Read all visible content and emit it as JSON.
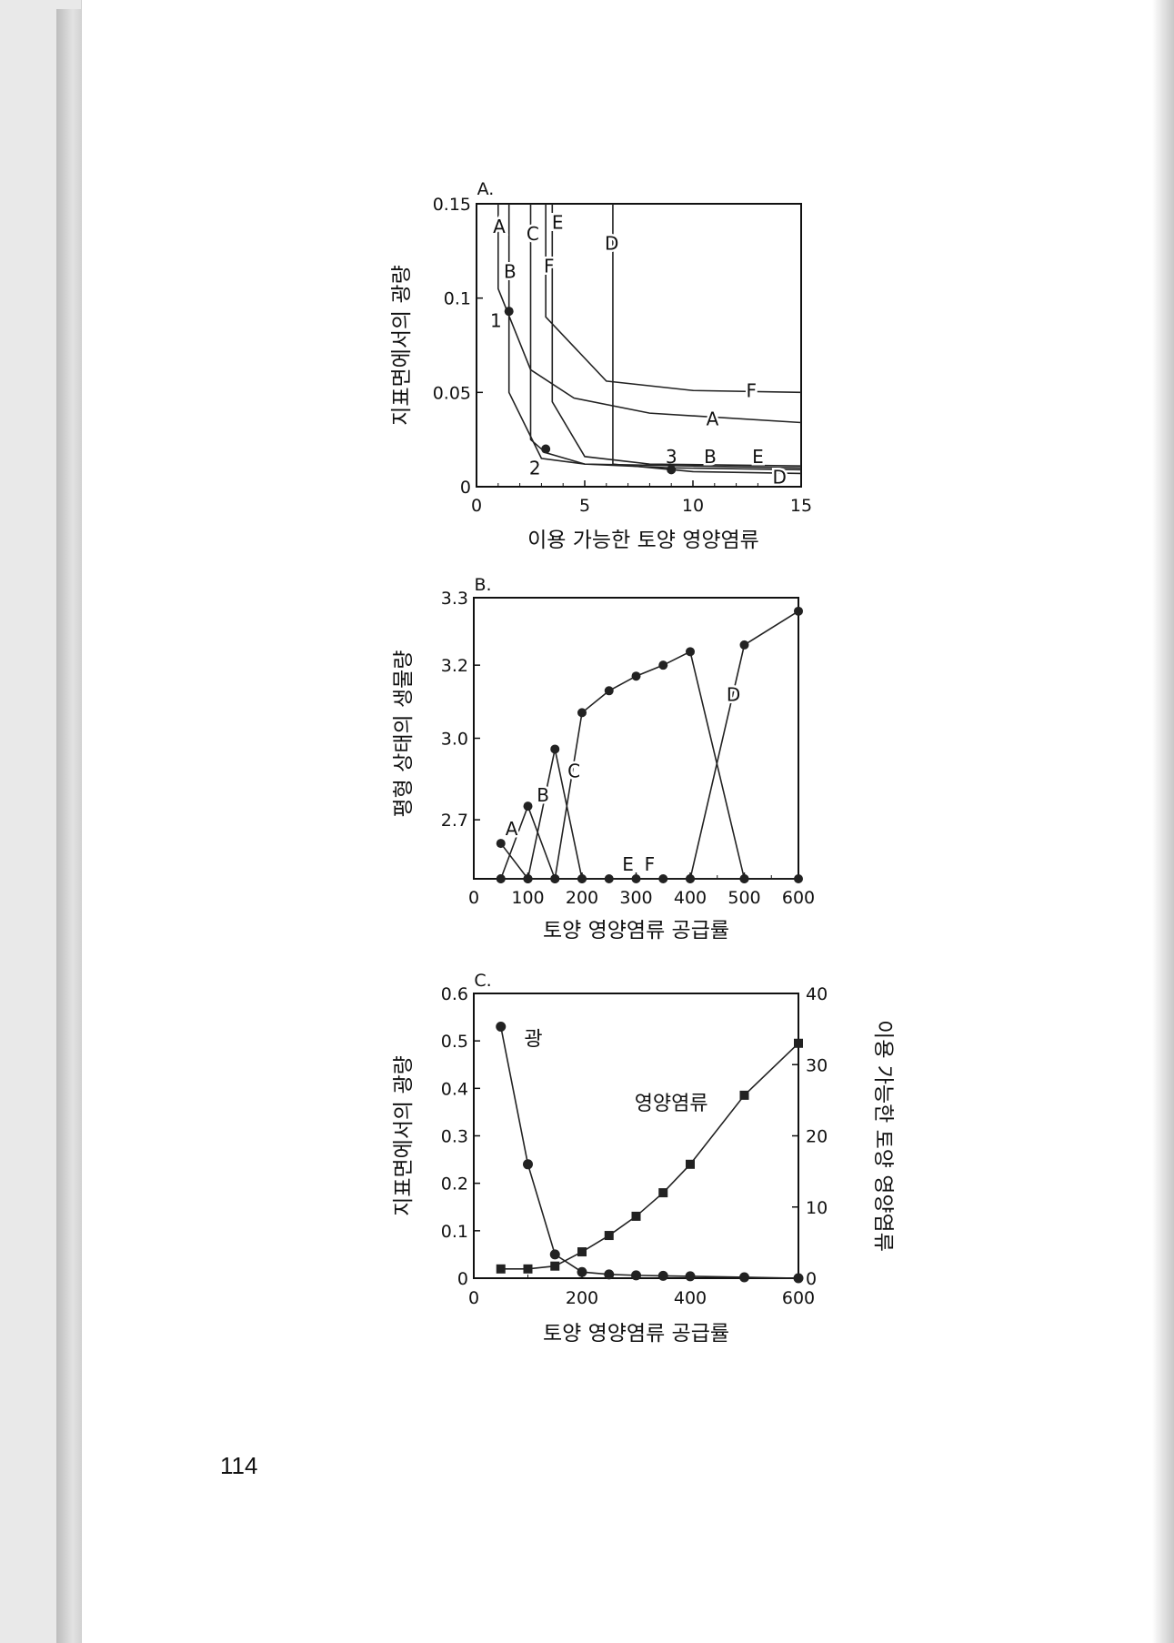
{
  "page_number": "114",
  "chart_data": [
    {
      "id": "A",
      "panel_label": "A.",
      "type": "line",
      "xlabel": "이용 가능한 토양 영양염류",
      "ylabel": "지표면에서의 광량",
      "xlim": [
        0,
        15
      ],
      "ylim": [
        0,
        0.15
      ],
      "xticks": [
        0,
        5,
        10,
        15
      ],
      "xtick_labels": [
        "0",
        "5",
        "10",
        "15"
      ],
      "yticks": [
        0,
        0.05,
        0.1,
        0.15
      ],
      "ytick_labels": [
        "0",
        "0.05",
        "0.1",
        "0.15"
      ],
      "series": [
        {
          "name": "A",
          "points": [
            [
              1.0,
              0.15
            ],
            [
              1.0,
              0.105
            ],
            [
              2.5,
              0.062
            ],
            [
              4.5,
              0.047
            ],
            [
              8,
              0.039
            ],
            [
              15,
              0.034
            ]
          ]
        },
        {
          "name": "B",
          "points": [
            [
              1.5,
              0.15
            ],
            [
              1.5,
              0.05
            ],
            [
              3,
              0.015
            ],
            [
              5,
              0.012
            ],
            [
              10,
              0.011
            ],
            [
              15,
              0.01
            ]
          ]
        },
        {
          "name": "C",
          "points": [
            [
              2.5,
              0.15
            ],
            [
              2.5,
              0.025
            ],
            [
              3.2,
              0.018
            ],
            [
              5,
              0.012
            ],
            [
              9,
              0.01
            ],
            [
              15,
              0.009
            ]
          ]
        },
        {
          "name": "E",
          "points": [
            [
              3.5,
              0.15
            ],
            [
              3.5,
              0.045
            ],
            [
              5,
              0.016
            ],
            [
              8,
              0.012
            ],
            [
              15,
              0.011
            ]
          ]
        },
        {
          "name": "F",
          "points": [
            [
              3.2,
              0.15
            ],
            [
              3.2,
              0.09
            ],
            [
              6,
              0.056
            ],
            [
              10,
              0.051
            ],
            [
              15,
              0.05
            ]
          ]
        },
        {
          "name": "D",
          "points": [
            [
              6.3,
              0.15
            ],
            [
              6.3,
              0.012
            ],
            [
              10,
              0.008
            ],
            [
              15,
              0.007
            ]
          ]
        }
      ],
      "curve_labels": [
        {
          "text": "A",
          "x": 1.05,
          "y": 0.138
        },
        {
          "text": "B",
          "x": 1.55,
          "y": 0.114
        },
        {
          "text": "C",
          "x": 2.6,
          "y": 0.134
        },
        {
          "text": "E",
          "x": 3.75,
          "y": 0.14
        },
        {
          "text": "F",
          "x": 3.35,
          "y": 0.117
        },
        {
          "text": "D",
          "x": 6.25,
          "y": 0.129
        },
        {
          "text": "F",
          "x": 12.7,
          "y": 0.051
        },
        {
          "text": "A",
          "x": 10.9,
          "y": 0.036
        },
        {
          "text": "B",
          "x": 10.8,
          "y": 0.016
        },
        {
          "text": "E",
          "x": 13.0,
          "y": 0.016
        },
        {
          "text": "D",
          "x": 14.0,
          "y": 0.005
        }
      ],
      "equilibrium_points": [
        {
          "label": "1",
          "x": 1.5,
          "y": 0.093,
          "lx": 0.9,
          "ly": 0.088
        },
        {
          "label": "2",
          "x": 3.2,
          "y": 0.02,
          "lx": 2.7,
          "ly": 0.01
        },
        {
          "label": "3",
          "x": 9.0,
          "y": 0.009,
          "lx": 9.0,
          "ly": 0.016
        }
      ]
    },
    {
      "id": "B",
      "panel_label": "B.",
      "type": "line",
      "xlabel": "토양 영양염류 공급률",
      "ylabel": "평형 상태의 생물량",
      "xlim": [
        0,
        600
      ],
      "ylim": [
        2.5,
        3.3
      ],
      "xticks": [
        0,
        100,
        200,
        300,
        400,
        500,
        600
      ],
      "xtick_labels": [
        "0",
        "100",
        "200",
        "300",
        "400",
        "500",
        "600"
      ],
      "yticks": [
        2.7,
        3.0,
        3.2,
        3.3
      ],
      "ytick_labels": [
        "2.7",
        "3.0",
        "3.2",
        "3.3"
      ],
      "y_positions": {
        "2.5": 1.0,
        "2.7": 0.79,
        "3.0": 0.5,
        "3.2": 0.24,
        "3.3": 0.0
      },
      "series": [
        {
          "name": "A",
          "points": [
            [
              50,
              "2.62"
            ],
            [
              100,
              "2.5"
            ]
          ]
        },
        {
          "name": "B",
          "points": [
            [
              50,
              "2.5"
            ],
            [
              100,
              "2.75"
            ],
            [
              150,
              "2.5"
            ]
          ]
        },
        {
          "name": "C",
          "points": [
            [
              100,
              "2.5"
            ],
            [
              150,
              "2.96"
            ],
            [
              200,
              "2.5"
            ]
          ]
        },
        {
          "name": "D",
          "points": [
            [
              150,
              "2.5"
            ],
            [
              200,
              "3.07"
            ],
            [
              250,
              "3.13"
            ],
            [
              300,
              "3.17"
            ],
            [
              350,
              "3.20"
            ],
            [
              400,
              "3.22"
            ],
            [
              500,
              "2.5"
            ]
          ]
        },
        {
          "name": "D2",
          "points": [
            [
              400,
              "2.5"
            ],
            [
              500,
              "3.23"
            ],
            [
              600,
              "3.28"
            ]
          ]
        },
        {
          "name": "baseline",
          "points": [
            [
              50,
              "2.5"
            ],
            [
              100,
              "2.5"
            ],
            [
              150,
              "2.5"
            ],
            [
              200,
              "2.5"
            ],
            [
              250,
              "2.5"
            ],
            [
              300,
              "2.5"
            ],
            [
              350,
              "2.5"
            ],
            [
              400,
              "2.5"
            ],
            [
              500,
              "2.5"
            ],
            [
              600,
              "2.5"
            ]
          ]
        }
      ],
      "curve_labels": [
        {
          "text": "A",
          "x": 70,
          "y": "2.67"
        },
        {
          "text": "B",
          "x": 128,
          "y": "2.79"
        },
        {
          "text": "C",
          "x": 185,
          "y": "2.88"
        },
        {
          "text": "D",
          "x": 480,
          "y": "3.12"
        },
        {
          "text": "E",
          "x": 285,
          "y": "2.55"
        },
        {
          "text": "F",
          "x": 325,
          "y": "2.55"
        }
      ]
    },
    {
      "id": "C",
      "panel_label": "C.",
      "type": "line",
      "xlabel": "토양 영양염류 공급률",
      "ylabel": "지표면에서의 광량",
      "ylabel_right": "이용 가능한 토양 영양염류",
      "xlim": [
        0,
        600
      ],
      "ylim": [
        0,
        0.6
      ],
      "ylim_right": [
        0,
        40
      ],
      "xticks": [
        0,
        200,
        400,
        600
      ],
      "xtick_labels": [
        "0",
        "200",
        "400",
        "600"
      ],
      "yticks": [
        0,
        0.1,
        0.2,
        0.3,
        0.4,
        0.5,
        0.6
      ],
      "ytick_labels": [
        "0",
        "0.1",
        "0.2",
        "0.3",
        "0.4",
        "0.5",
        "0.6"
      ],
      "yticks_right": [
        0,
        10,
        20,
        30,
        40
      ],
      "ytick_labels_right": [
        "0",
        "10",
        "20",
        "30",
        "40"
      ],
      "series": [
        {
          "name": "광",
          "axis": "left",
          "marker": "circle",
          "x": [
            50,
            100,
            150,
            200,
            250,
            300,
            350,
            400,
            500,
            600
          ],
          "y": [
            0.53,
            0.24,
            0.05,
            0.013,
            0.008,
            0.006,
            0.005,
            0.004,
            0.002,
            0.0
          ]
        },
        {
          "name": "영양염류",
          "axis": "right",
          "marker": "square",
          "x": [
            50,
            100,
            150,
            200,
            250,
            300,
            350,
            400,
            500,
            600
          ],
          "y": [
            1.3,
            1.3,
            1.7,
            3.7,
            6.0,
            8.7,
            12.0,
            16.0,
            25.7,
            33.0
          ]
        }
      ],
      "series_labels": [
        {
          "text": "광",
          "x": 110,
          "y": 0.49
        },
        {
          "text": "영양염류",
          "x": 365,
          "y": 0.355
        }
      ]
    }
  ]
}
